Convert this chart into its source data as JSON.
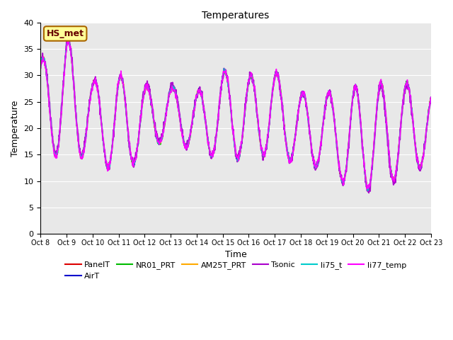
{
  "title": "Temperatures",
  "xlabel": "Time",
  "ylabel": "Temperature",
  "ylim": [
    0,
    40
  ],
  "yticks": [
    0,
    5,
    10,
    15,
    20,
    25,
    30,
    35,
    40
  ],
  "bg_color": "#e8e8e8",
  "series_order": [
    "PanelT",
    "AirT",
    "NR01_PRT",
    "AM25T_PRT",
    "Tsonic",
    "li75_t",
    "li77_temp"
  ],
  "series_colors": {
    "PanelT": "#dd0000",
    "AirT": "#0000cc",
    "NR01_PRT": "#00bb00",
    "AM25T_PRT": "#ffaa00",
    "Tsonic": "#aa00cc",
    "li75_t": "#00cccc",
    "li77_temp": "#ff00ff"
  },
  "series_lw": {
    "PanelT": 1.0,
    "AirT": 1.0,
    "NR01_PRT": 1.0,
    "AM25T_PRT": 1.0,
    "Tsonic": 1.5,
    "li75_t": 1.0,
    "li77_temp": 1.2
  },
  "annotation_text": "HS_met",
  "annotation_bg": "#ffff99",
  "annotation_border": "#aa6600",
  "n_days": 15,
  "pts_per_day": 96,
  "peak_maxima": [
    33,
    37,
    29,
    30,
    28,
    28,
    27,
    31,
    30,
    31,
    27,
    27,
    29,
    29,
    29,
    27
  ],
  "peak_minima": [
    16,
    14,
    15,
    11,
    15,
    19,
    15,
    15,
    14,
    16,
    13,
    13,
    11,
    7.5,
    13,
    13
  ],
  "tsonic_extra_spread": 3.0,
  "deep_dip_day": 11.8,
  "deep_dip_val": 7.5
}
